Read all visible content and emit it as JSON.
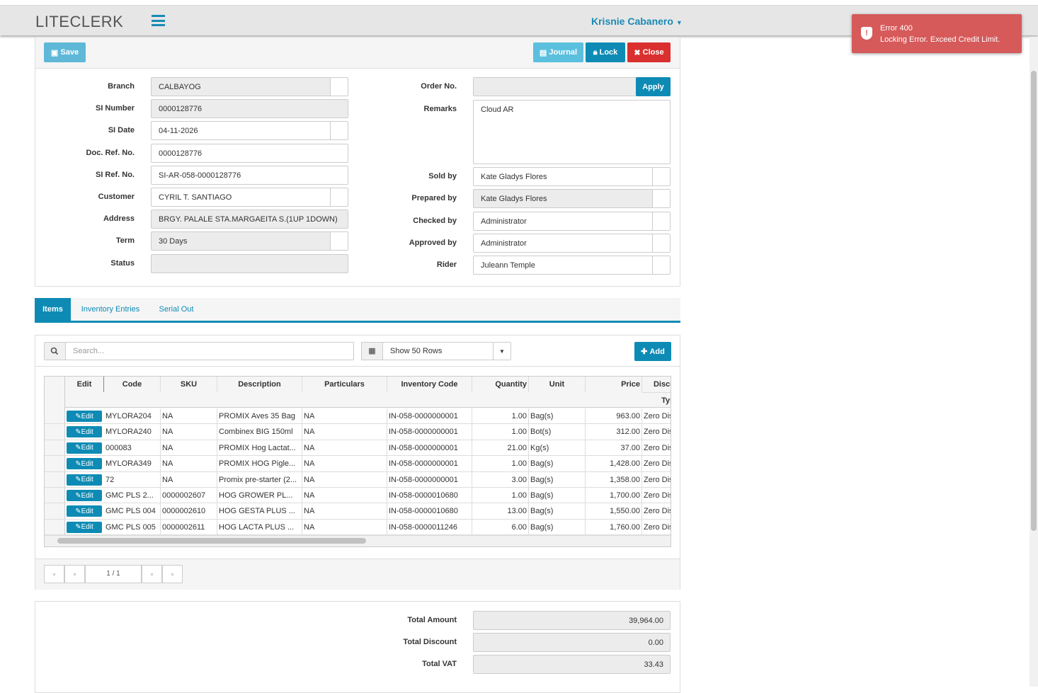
{
  "header": {
    "logo": "LITECLERK",
    "user": "Krisnie Cabanero"
  },
  "toast": {
    "title": "Error 400",
    "message": "Locking Error. Exceed Credit Limit."
  },
  "toolbar": {
    "save": "Save",
    "journal": "Journal",
    "lock": "Lock",
    "close": "Close"
  },
  "form": {
    "left": [
      {
        "label": "Branch",
        "value": "CALBAYOG"
      },
      {
        "label": "SI Number",
        "value": "0000128776"
      },
      {
        "label": "SI Date",
        "value": "04-11-2026"
      },
      {
        "label": "Doc. Ref. No.",
        "value": "0000128776"
      },
      {
        "label": "SI Ref. No.",
        "value": "SI-AR-058-0000128776"
      },
      {
        "label": "Customer",
        "value": "CYRIL  T. SANTIAGO"
      },
      {
        "label": "Address",
        "value": "BRGY. PALALE STA.MARGAEITA S.(1UP 1DOWN)"
      },
      {
        "label": "Term",
        "value": "30 Days"
      },
      {
        "label": "Status"
      }
    ],
    "order_no": "Order No.",
    "apply": "Apply",
    "remarks": {
      "label": "Remarks",
      "value": "Cloud AR"
    },
    "right": [
      {
        "label": "Sold by",
        "value": "Kate Gladys Flores"
      },
      {
        "label": "Prepared by",
        "value": "Kate Gladys Flores"
      },
      {
        "label": "Checked by",
        "value": "Administrator"
      },
      {
        "label": "Approved by",
        "value": "Administrator"
      },
      {
        "label": "Rider",
        "value": "Juleann Temple"
      }
    ]
  },
  "tabs": [
    "Items",
    "Inventory Entries",
    "Serial Out"
  ],
  "grid": {
    "search": "Search...",
    "page_size": "Show 50 Rows",
    "add": "Add",
    "edit": "Edit",
    "columns": [
      "Edit",
      "Code",
      "SKU",
      "Description",
      "Particulars",
      "Inventory Code",
      "Quantity",
      "Unit",
      "Price",
      "Discount"
    ],
    "subheader": "Type",
    "rows": [
      [
        "MYLORA204",
        "NA",
        "PROMIX Aves 35 Bag",
        "NA",
        "IN-058-0000000001",
        "1.00",
        "Bag(s)",
        "963.00",
        "Zero Discount"
      ],
      [
        "MYLORA240",
        "NA",
        "Combinex BIG 150ml",
        "NA",
        "IN-058-0000000001",
        "1.00",
        "Bot(s)",
        "312.00",
        "Zero Discount"
      ],
      [
        "000083",
        "NA",
        "PROMIX Hog Lactat...",
        "NA",
        "IN-058-0000000001",
        "21.00",
        "Kg(s)",
        "37.00",
        "Zero Discount"
      ],
      [
        "MYLORA349",
        "NA",
        "PROMIX HOG Pigle...",
        "NA",
        "IN-058-0000000001",
        "1.00",
        "Bag(s)",
        "1,428.00",
        "Zero Discount"
      ],
      [
        "72",
        "NA",
        "Promix pre-starter (2...",
        "NA",
        "IN-058-0000000001",
        "3.00",
        "Bag(s)",
        "1,358.00",
        "Zero Discount"
      ],
      [
        "GMC PLS 2...",
        "0000002607",
        "HOG GROWER PL...",
        "NA",
        "IN-058-0000010680",
        "1.00",
        "Bag(s)",
        "1,700.00",
        "Zero Discount"
      ],
      [
        "GMC PLS 004",
        "0000002610",
        "HOG GESTA PLUS ...",
        "NA",
        "IN-058-0000010680",
        "13.00",
        "Bag(s)",
        "1,550.00",
        "Zero Discount"
      ],
      [
        "GMC PLS 005",
        "0000002611",
        "HOG LACTA PLUS ...",
        "NA",
        "IN-058-0000011246",
        "6.00",
        "Bag(s)",
        "1,760.00",
        "Zero Discount"
      ]
    ],
    "pager": "1 / 1"
  },
  "totals": [
    {
      "label": "Total Amount",
      "value": "39,964.00"
    },
    {
      "label": "Total Discount",
      "value": "0.00"
    },
    {
      "label": "Total VAT",
      "value": "33.43"
    }
  ]
}
